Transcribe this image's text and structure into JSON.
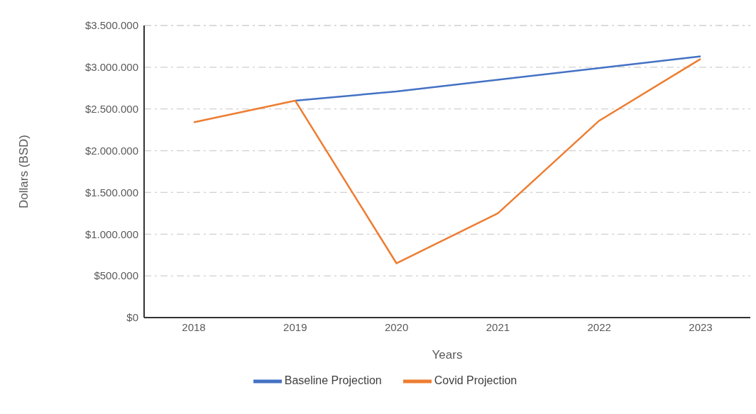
{
  "chart_data": {
    "type": "line",
    "xlabel": "Years",
    "ylabel": "Dollars (BSD)",
    "categories": [
      "2018",
      "2019",
      "2020",
      "2021",
      "2022",
      "2023"
    ],
    "series": [
      {
        "name": "Baseline Projection",
        "color": "#4472c4",
        "values": [
          null,
          2600000,
          2710000,
          2850000,
          2990000,
          3130000
        ]
      },
      {
        "name": "Covid Projection",
        "color": "#ed7d31",
        "values": [
          2340000,
          2600000,
          650000,
          1250000,
          2360000,
          3100000
        ]
      }
    ],
    "ylim": [
      0,
      3500000
    ],
    "yticks": [
      {
        "value": 0,
        "label": "$0"
      },
      {
        "value": 500000,
        "label": "$500.000"
      },
      {
        "value": 1000000,
        "label": "$1.000.000"
      },
      {
        "value": 1500000,
        "label": "$1.500.000"
      },
      {
        "value": 2000000,
        "label": "$2.000.000"
      },
      {
        "value": 2500000,
        "label": "$2.500.000"
      },
      {
        "value": 3000000,
        "label": "$3.000.000"
      },
      {
        "value": 3500000,
        "label": "$3.500.000"
      }
    ],
    "grid": "y",
    "legend": "bottom",
    "line_style": "solid"
  }
}
